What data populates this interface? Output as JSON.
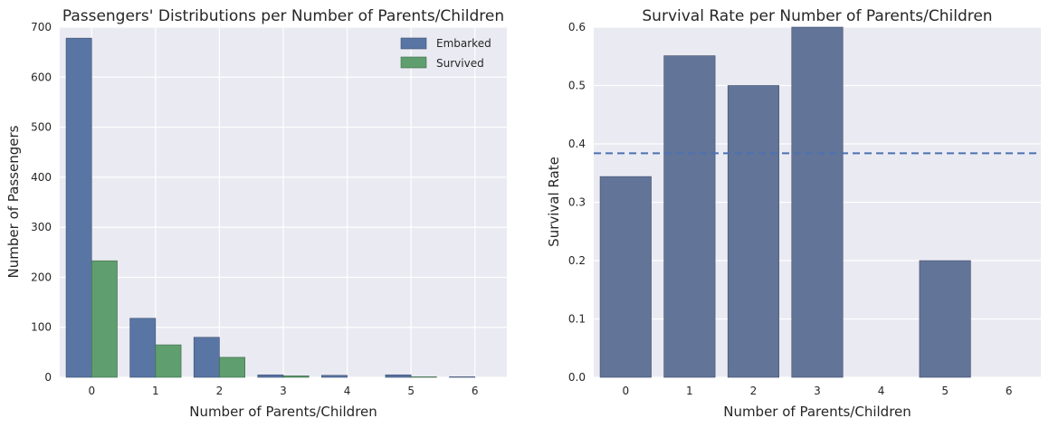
{
  "colors": {
    "background": "#eaeaf2",
    "grid": "#ffffff",
    "embarked": "#5975a4",
    "survived": "#5f9e6e",
    "rate_bar": "#627498",
    "mean_line": "#4c72b0"
  },
  "chart_data": [
    {
      "type": "bar",
      "title": "Passengers' Distributions per Number of Parents/Children",
      "xlabel": "Number of Parents/Children",
      "ylabel": "Number of Passengers",
      "ylim": [
        0,
        700
      ],
      "yticks": [
        "0",
        "100",
        "200",
        "300",
        "400",
        "500",
        "600",
        "700"
      ],
      "categories": [
        "0",
        "1",
        "2",
        "3",
        "4",
        "5",
        "6"
      ],
      "series": [
        {
          "name": "Embarked",
          "values": [
            678,
            118,
            80,
            5,
            4,
            5,
            1
          ]
        },
        {
          "name": "Survived",
          "values": [
            233,
            65,
            40,
            3,
            0,
            1,
            0
          ]
        }
      ],
      "legend": "top-right",
      "grid": true
    },
    {
      "type": "bar",
      "title": "Survival Rate per Number of Parents/Children",
      "xlabel": "Number of Parents/Children",
      "ylabel": "Survival Rate",
      "ylim": [
        0,
        0.6
      ],
      "yticks": [
        "0.0",
        "0.1",
        "0.2",
        "0.3",
        "0.4",
        "0.5",
        "0.6"
      ],
      "categories": [
        "0",
        "1",
        "2",
        "3",
        "4",
        "5",
        "6"
      ],
      "values": [
        0.344,
        0.551,
        0.5,
        0.6,
        0.0,
        0.2,
        0.0
      ],
      "reference_line": 0.384,
      "grid": true
    }
  ]
}
